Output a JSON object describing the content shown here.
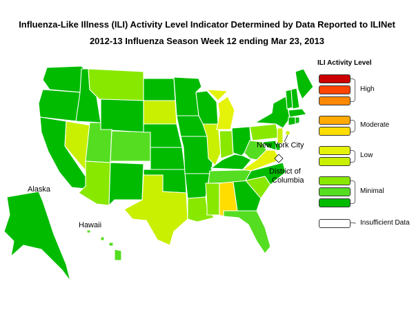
{
  "title_line1": "Influenza-Like Illness (ILI) Activity Level Indicator Determined by Data Reported to ILINet",
  "title_line2": "2012-13  Influenza Season Week  12 ending Mar 23, 2013",
  "labels": {
    "alaska": "Alaska",
    "hawaii": "Hawaii",
    "nyc": "New York City",
    "dc_line1": "District of",
    "dc_line2": "Columbia"
  },
  "legend": {
    "title": "ILI Activity Level",
    "groups": [
      {
        "label": "High",
        "levels": [
          10,
          9,
          8
        ]
      },
      {
        "label": "Moderate",
        "levels": [
          7,
          6
        ]
      },
      {
        "label": "Low",
        "levels": [
          5,
          4
        ]
      },
      {
        "label": "Minimal",
        "levels": [
          3,
          2,
          1
        ]
      },
      {
        "label": "Insufficient Data",
        "levels": [
          0
        ]
      }
    ],
    "colors": {
      "10": "#cc0000",
      "9": "#ff4400",
      "8": "#ff8800",
      "7": "#ffaa00",
      "6": "#ffdd00",
      "5": "#e5f20a",
      "4": "#c8f000",
      "3": "#88e800",
      "2": "#55dd22",
      "1": "#00bb00",
      "0": "#ffffff"
    }
  },
  "activity": {
    "WA": 1,
    "OR": 1,
    "CA": 1,
    "NV": 4,
    "ID": 1,
    "MT": 3,
    "WY": 1,
    "UT": 2,
    "CO": 2,
    "AZ": 3,
    "NM": 1,
    "ND": 1,
    "SD": 4,
    "NE": 1,
    "KS": 1,
    "OK": 1,
    "TX": 4,
    "MN": 1,
    "IA": 1,
    "MO": 1,
    "AR": 1,
    "LA": 3,
    "WI": 1,
    "IL": 4,
    "MI": 5,
    "IN": 3,
    "OH": 1,
    "KY": 1,
    "TN": 2,
    "MS": 3,
    "AL": 6,
    "GA": 1,
    "FL": 2,
    "SC": 3,
    "NC": 1,
    "VA": 5,
    "WV": 2,
    "PA": 3,
    "NY": 1,
    "VT": 1,
    "NH": 1,
    "ME": 1,
    "MA": 1,
    "CT": 1,
    "RI": 1,
    "NJ": 4,
    "DE": 1,
    "MD": 1,
    "AK": 1,
    "HI": 2,
    "NYC": 4,
    "DC": 0
  }
}
